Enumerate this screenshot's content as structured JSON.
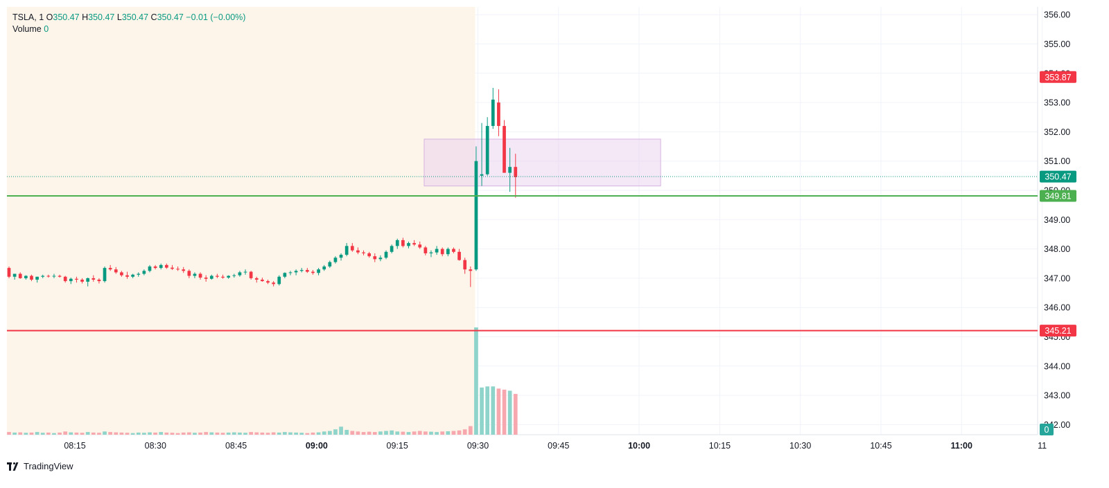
{
  "legend": {
    "symbol": "TSLA",
    "interval": "1",
    "open_label": "O",
    "open": "350.47",
    "high_label": "H",
    "high": "350.47",
    "low_label": "L",
    "low": "350.47",
    "close_label": "C",
    "close": "350.47",
    "change": "−0.01 (−0.00%)",
    "volume_label": "Volume",
    "volume_value": "0"
  },
  "branding": {
    "label": "TradingView"
  },
  "colors": {
    "up": "#089981",
    "down": "#f23645",
    "up_volume": "#8ed4ca",
    "down_volume": "#f7a8ae",
    "premarket_bg": "#fdf5ea",
    "zone": "#e7cdee",
    "support_line": "#4caf50",
    "resistance_line": "#f23645"
  },
  "chart_data": {
    "type": "candlestick",
    "symbol": "TSLA",
    "interval": "1",
    "x_ticks": [
      {
        "label": "08:15",
        "bold": false
      },
      {
        "label": "08:30",
        "bold": false
      },
      {
        "label": "08:45",
        "bold": false
      },
      {
        "label": "09:00",
        "bold": true
      },
      {
        "label": "09:15",
        "bold": false
      },
      {
        "label": "09:30",
        "bold": false
      },
      {
        "label": "09:45",
        "bold": false
      },
      {
        "label": "10:00",
        "bold": true
      },
      {
        "label": "10:15",
        "bold": false
      },
      {
        "label": "10:30",
        "bold": false
      },
      {
        "label": "10:45",
        "bold": false
      },
      {
        "label": "11:00",
        "bold": true
      },
      {
        "label": "11",
        "bold": false
      }
    ],
    "y_ticks": [
      "356.00",
      "355.00",
      "354.00",
      "353.00",
      "352.00",
      "351.00",
      "350.00",
      "349.00",
      "348.00",
      "347.00",
      "346.00",
      "345.00",
      "344.00",
      "343.00",
      "342.00"
    ],
    "ylim": [
      341.6,
      356.25
    ],
    "first_bar_time": "08:05",
    "last_bar_time": "09:37",
    "premarket_end": "09:30",
    "horizontal_lines": [
      {
        "value": 349.81,
        "label": "349.81",
        "color": "#4caf50"
      },
      {
        "value": 345.21,
        "label": "345.21",
        "color": "#f23645"
      }
    ],
    "zone": {
      "from_time": "09:20",
      "to_time": "10:04",
      "top": 351.75,
      "bottom": 350.15
    },
    "price_tags": [
      {
        "value": 353.87,
        "label": "353.87",
        "color": "#f23645"
      },
      {
        "value": 350.47,
        "label": "350.47",
        "color": "#089981",
        "dotted": true
      }
    ],
    "volume_tag": {
      "label": "0",
      "color": "#26a69a"
    },
    "candles": [
      [
        347.35,
        347.4,
        347.0,
        347.05
      ],
      [
        347.05,
        347.15,
        346.95,
        347.15
      ],
      [
        347.15,
        347.2,
        346.98,
        347.0
      ],
      [
        347.0,
        347.1,
        346.95,
        347.08
      ],
      [
        347.08,
        347.12,
        346.9,
        346.95
      ],
      [
        346.95,
        347.05,
        346.85,
        347.05
      ],
      [
        347.05,
        347.12,
        347.0,
        347.08
      ],
      [
        347.08,
        347.12,
        347.02,
        347.06
      ],
      [
        347.06,
        347.15,
        347.0,
        347.08
      ],
      [
        347.08,
        347.12,
        347.02,
        347.05
      ],
      [
        347.05,
        347.08,
        346.85,
        346.9
      ],
      [
        346.9,
        347.02,
        346.8,
        346.98
      ],
      [
        346.98,
        347.05,
        346.85,
        346.95
      ],
      [
        346.95,
        347.0,
        346.82,
        346.88
      ],
      [
        346.88,
        347.02,
        346.72,
        347.0
      ],
      [
        347.0,
        347.1,
        346.88,
        346.95
      ],
      [
        346.95,
        347.0,
        346.82,
        346.9
      ],
      [
        346.9,
        347.4,
        346.85,
        347.35
      ],
      [
        347.35,
        347.45,
        347.25,
        347.3
      ],
      [
        347.3,
        347.38,
        347.15,
        347.2
      ],
      [
        347.2,
        347.25,
        347.05,
        347.1
      ],
      [
        347.1,
        347.22,
        346.98,
        347.05
      ],
      [
        347.05,
        347.15,
        347.0,
        347.12
      ],
      [
        347.12,
        347.2,
        347.05,
        347.15
      ],
      [
        347.15,
        347.3,
        347.1,
        347.25
      ],
      [
        347.25,
        347.45,
        347.2,
        347.4
      ],
      [
        347.4,
        347.45,
        347.3,
        347.35
      ],
      [
        347.35,
        347.5,
        347.3,
        347.45
      ],
      [
        347.45,
        347.5,
        347.32,
        347.36
      ],
      [
        347.36,
        347.45,
        347.28,
        347.32
      ],
      [
        347.32,
        347.4,
        347.25,
        347.3
      ],
      [
        347.3,
        347.38,
        347.18,
        347.25
      ],
      [
        347.25,
        347.3,
        347.0,
        347.08
      ],
      [
        347.08,
        347.2,
        347.0,
        347.15
      ],
      [
        347.15,
        347.2,
        346.95,
        347.02
      ],
      [
        347.02,
        347.1,
        346.88,
        346.98
      ],
      [
        346.98,
        347.12,
        346.95,
        347.08
      ],
      [
        347.08,
        347.15,
        347.0,
        347.05
      ],
      [
        347.05,
        347.12,
        346.98,
        347.02
      ],
      [
        347.02,
        347.1,
        346.98,
        347.08
      ],
      [
        347.08,
        347.15,
        347.02,
        347.1
      ],
      [
        347.1,
        347.25,
        347.05,
        347.2
      ],
      [
        347.2,
        347.3,
        347.12,
        347.22
      ],
      [
        347.22,
        347.25,
        346.95,
        347.0
      ],
      [
        347.0,
        347.05,
        346.85,
        346.95
      ],
      [
        346.95,
        347.02,
        346.88,
        346.9
      ],
      [
        346.9,
        346.95,
        346.8,
        346.85
      ],
      [
        346.85,
        346.9,
        346.72,
        346.8
      ],
      [
        346.8,
        347.1,
        346.75,
        347.05
      ],
      [
        347.05,
        347.2,
        347.0,
        347.18
      ],
      [
        347.18,
        347.25,
        347.1,
        347.2
      ],
      [
        347.2,
        347.3,
        347.1,
        347.25
      ],
      [
        347.25,
        347.35,
        347.2,
        347.28
      ],
      [
        347.28,
        347.35,
        347.18,
        347.22
      ],
      [
        347.22,
        347.28,
        347.12,
        347.18
      ],
      [
        347.18,
        347.35,
        347.1,
        347.3
      ],
      [
        347.3,
        347.45,
        347.25,
        347.4
      ],
      [
        347.4,
        347.6,
        347.35,
        347.55
      ],
      [
        347.55,
        347.75,
        347.5,
        347.7
      ],
      [
        347.7,
        347.85,
        347.6,
        347.8
      ],
      [
        347.8,
        348.2,
        347.75,
        348.1
      ],
      [
        348.1,
        348.2,
        347.9,
        347.95
      ],
      [
        347.95,
        348.05,
        347.82,
        347.88
      ],
      [
        347.88,
        347.95,
        347.78,
        347.85
      ],
      [
        347.85,
        347.9,
        347.7,
        347.75
      ],
      [
        347.75,
        347.85,
        347.55,
        347.65
      ],
      [
        347.65,
        347.78,
        347.58,
        347.7
      ],
      [
        347.7,
        347.95,
        347.65,
        347.9
      ],
      [
        347.9,
        348.15,
        347.85,
        348.1
      ],
      [
        348.1,
        348.35,
        348.0,
        348.3
      ],
      [
        348.3,
        348.38,
        348.05,
        348.1
      ],
      [
        348.1,
        348.25,
        348.02,
        348.2
      ],
      [
        348.2,
        348.3,
        348.1,
        348.15
      ],
      [
        348.15,
        348.25,
        348.0,
        348.05
      ],
      [
        348.05,
        348.1,
        347.78,
        347.85
      ],
      [
        347.85,
        347.95,
        347.72,
        347.88
      ],
      [
        347.88,
        348.1,
        347.8,
        348.0
      ],
      [
        348.0,
        348.05,
        347.75,
        347.82
      ],
      [
        347.82,
        348.05,
        347.75,
        348.0
      ],
      [
        348.0,
        348.05,
        347.85,
        347.9
      ],
      [
        347.9,
        348.0,
        347.6,
        347.62
      ],
      [
        347.62,
        347.7,
        347.15,
        347.3
      ],
      [
        347.3,
        347.4,
        346.7,
        347.25
      ],
      [
        347.3,
        351.5,
        347.25,
        351.0
      ],
      [
        350.5,
        352.3,
        350.15,
        350.55
      ],
      [
        350.55,
        352.5,
        350.5,
        352.2
      ],
      [
        352.2,
        353.5,
        352.1,
        353.1
      ],
      [
        353.0,
        353.45,
        351.85,
        352.2
      ],
      [
        352.2,
        352.4,
        350.6,
        350.6
      ],
      [
        350.6,
        351.45,
        349.95,
        350.8
      ],
      [
        350.8,
        351.25,
        349.75,
        350.45
      ]
    ],
    "volumes": [
      0.025,
      0.02,
      0.022,
      0.018,
      0.02,
      0.025,
      0.018,
      0.02,
      0.015,
      0.02,
      0.03,
      0.022,
      0.02,
      0.018,
      0.025,
      0.02,
      0.018,
      0.03,
      0.025,
      0.022,
      0.02,
      0.018,
      0.015,
      0.02,
      0.018,
      0.022,
      0.02,
      0.025,
      0.02,
      0.018,
      0.015,
      0.02,
      0.022,
      0.018,
      0.02,
      0.025,
      0.022,
      0.02,
      0.018,
      0.02,
      0.022,
      0.02,
      0.018,
      0.025,
      0.022,
      0.02,
      0.018,
      0.022,
      0.02,
      0.025,
      0.022,
      0.02,
      0.018,
      0.015,
      0.02,
      0.022,
      0.03,
      0.035,
      0.05,
      0.075,
      0.045,
      0.035,
      0.03,
      0.025,
      0.028,
      0.025,
      0.03,
      0.035,
      0.04,
      0.03,
      0.028,
      0.025,
      0.03,
      0.035,
      0.03,
      0.028,
      0.025,
      0.03,
      0.032,
      0.035,
      0.04,
      0.05,
      0.08,
      1.0,
      0.44,
      0.45,
      0.45,
      0.43,
      0.42,
      0.41,
      0.38
    ]
  }
}
